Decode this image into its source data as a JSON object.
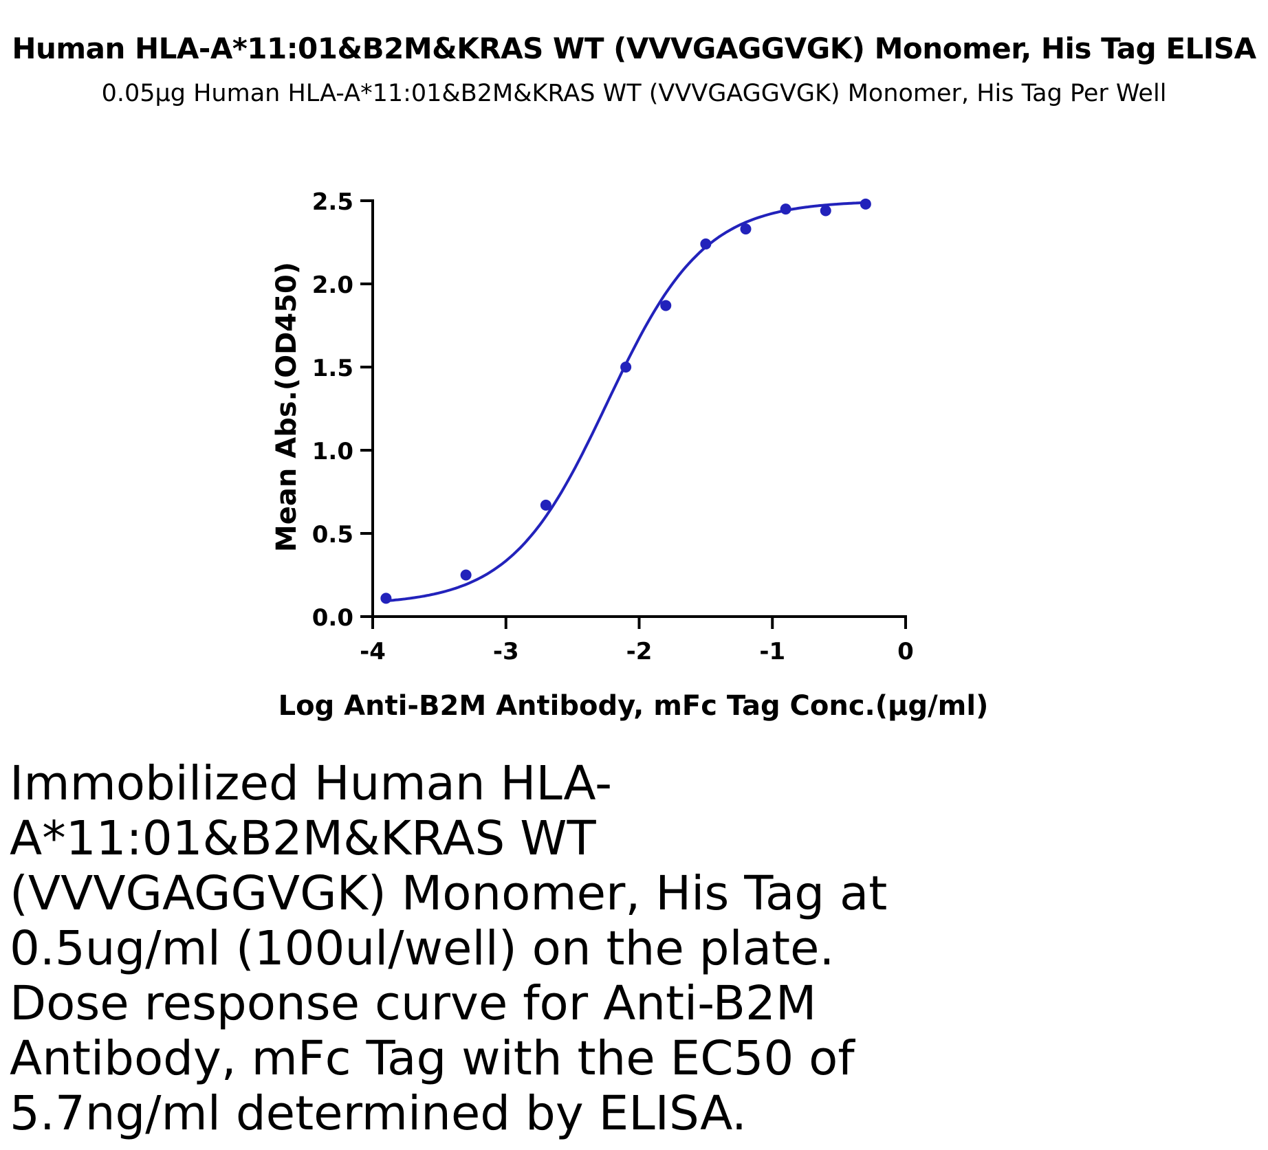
{
  "header": {
    "title": "Human HLA-A*11:01&B2M&KRAS WT (VVVGAGGVGK) Monomer, His Tag ELISA",
    "subtitle": "0.05μg Human HLA-A*11:01&B2M&KRAS WT (VVVGAGGVGK) Monomer, His Tag Per Well"
  },
  "chart_data": {
    "type": "scatter",
    "title": "Human HLA-A*11:01&B2M&KRAS WT (VVVGAGGVGK) Monomer, His Tag ELISA",
    "subtitle": "0.05μg Human HLA-A*11:01&B2M&KRAS WT (VVVGAGGVGK) Monomer, His Tag Per Well",
    "xlabel": "Log Anti-B2M Antibody, mFc Tag Conc.(μg/ml)",
    "ylabel": "Mean Abs.(OD450)",
    "xlim": [
      -4,
      0
    ],
    "ylim": [
      0,
      2.5
    ],
    "xticks": [
      "-4",
      "-3",
      "-2",
      "-1",
      "0"
    ],
    "yticks": [
      "0.0",
      "0.5",
      "1.0",
      "1.5",
      "2.0",
      "2.5"
    ],
    "grid": false,
    "color": "#2222bb",
    "series": [
      {
        "x": [
          -3.9,
          -3.3,
          -2.7,
          -2.1,
          -1.8,
          -1.5,
          -1.2,
          -0.9,
          -0.6,
          -0.3
        ],
        "y": [
          0.11,
          0.25,
          0.67,
          1.5,
          1.87,
          2.24,
          2.33,
          2.45,
          2.44,
          2.48
        ]
      }
    ],
    "fit": {
      "model": "4PL",
      "bottom": 0.07,
      "top": 2.5,
      "logEC50": -2.24,
      "hill": 1.2
    }
  },
  "caption": "Immobilized Human HLA-A*11:01&B2M&KRAS WT (VVVGAGGVGK) Monomer, His Tag at 0.5ug/ml (100ul/well) on the plate. Dose response curve for Anti-B2M Antibody, mFc Tag with the EC50 of 5.7ng/ml determined by ELISA."
}
